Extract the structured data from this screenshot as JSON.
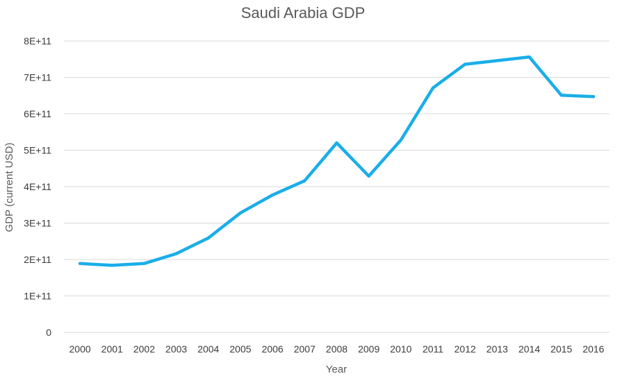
{
  "chart_data": {
    "type": "line",
    "title": "Saudi Arabia GDP",
    "xlabel": "Year",
    "ylabel": "GDP (current USD)",
    "x": [
      "2000",
      "2001",
      "2002",
      "2003",
      "2004",
      "2005",
      "2006",
      "2007",
      "2008",
      "2009",
      "2010",
      "2011",
      "2012",
      "2013",
      "2014",
      "2015",
      "2016"
    ],
    "series": [
      {
        "values": [
          189000000000.0,
          184000000000.0,
          189000000000.0,
          216000000000.0,
          259000000000.0,
          328000000000.0,
          377000000000.0,
          416000000000.0,
          520000000000.0,
          429000000000.0,
          528000000000.0,
          671000000000.0,
          736000000000.0,
          746000000000.0,
          756000000000.0,
          651000000000.0,
          647000000000.0
        ],
        "color": "#1aaee8"
      }
    ],
    "ylim": [
      0,
      800000000000.0
    ],
    "yticks": [
      {
        "value": 0,
        "label": "0"
      },
      {
        "value": 100000000000.0,
        "label": "1E+11"
      },
      {
        "value": 200000000000.0,
        "label": "2E+11"
      },
      {
        "value": 300000000000.0,
        "label": "3E+11"
      },
      {
        "value": 400000000000.0,
        "label": "4E+11"
      },
      {
        "value": 500000000000.0,
        "label": "5E+11"
      },
      {
        "value": 600000000000.0,
        "label": "6E+11"
      },
      {
        "value": 700000000000.0,
        "label": "7E+11"
      },
      {
        "value": 800000000000.0,
        "label": "8E+11"
      }
    ],
    "grid": true,
    "legend": "none",
    "colors": {
      "grid": "#d9d9d9",
      "text": "#595959"
    }
  }
}
